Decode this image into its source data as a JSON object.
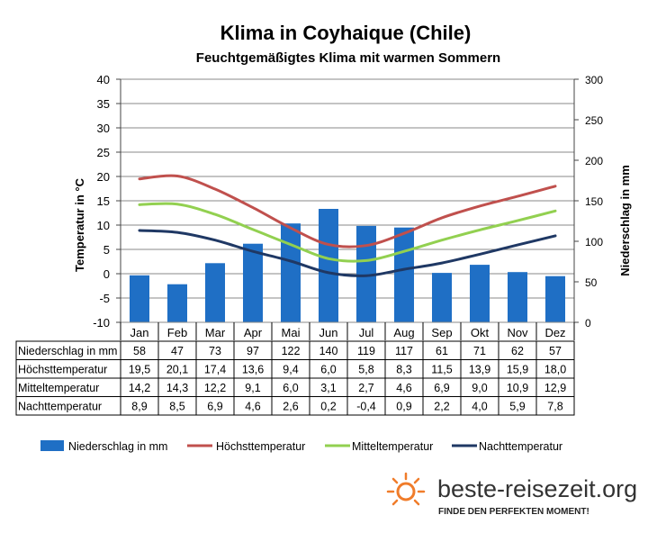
{
  "chart_data": {
    "type": "bar+line",
    "title": "Klima in Coyhaique (Chile)",
    "subtitle": "Feuchtgemäßigtes  Klima mit warmen Sommern",
    "ylabel_left": "Temperatur in °C",
    "ylabel_right": "Niederschlag in mm",
    "ylim_left": [
      -10,
      40
    ],
    "ylim_right": [
      0,
      300
    ],
    "yticks_left": [
      "40",
      "35",
      "30",
      "25",
      "20",
      "15",
      "10",
      "5",
      "0",
      "-5",
      "-10"
    ],
    "yticks_right": [
      "300",
      "250",
      "200",
      "150",
      "100",
      "50",
      "0"
    ],
    "categories": [
      "Jan",
      "Feb",
      "Mar",
      "Apr",
      "Mai",
      "Jun",
      "Jul",
      "Aug",
      "Sep",
      "Okt",
      "Nov",
      "Dez"
    ],
    "grid": true,
    "series": [
      {
        "name": "Niederschlag in mm",
        "type": "bar",
        "axis": "right",
        "color": "#1f6fc5",
        "values": [
          58,
          47,
          73,
          97,
          122,
          140,
          119,
          117,
          61,
          71,
          62,
          57
        ],
        "labels": [
          "58",
          "47",
          "73",
          "97",
          "122",
          "140",
          "119",
          "117",
          "61",
          "71",
          "62",
          "57"
        ]
      },
      {
        "name": "Höchsttemperatur",
        "type": "line",
        "axis": "left",
        "color": "#c0504d",
        "values": [
          19.5,
          20.1,
          17.4,
          13.6,
          9.4,
          6.0,
          5.8,
          8.3,
          11.5,
          13.9,
          15.9,
          18.0
        ],
        "labels": [
          "19,5",
          "20,1",
          "17,4",
          "13,6",
          "9,4",
          "6,0",
          "5,8",
          "8,3",
          "11,5",
          "13,9",
          "15,9",
          "18,0"
        ]
      },
      {
        "name": "Mitteltemperatur",
        "type": "line",
        "axis": "left",
        "color": "#92d050",
        "values": [
          14.2,
          14.3,
          12.2,
          9.1,
          6.0,
          3.1,
          2.7,
          4.6,
          6.9,
          9.0,
          10.9,
          12.9
        ],
        "labels": [
          "14,2",
          "14,3",
          "12,2",
          "9,1",
          "6,0",
          "3,1",
          "2,7",
          "4,6",
          "6,9",
          "9,0",
          "10,9",
          "12,9"
        ]
      },
      {
        "name": "Nachttemperatur",
        "type": "line",
        "axis": "left",
        "color": "#1f3864",
        "values": [
          8.9,
          8.5,
          6.9,
          4.6,
          2.6,
          0.2,
          -0.4,
          0.9,
          2.2,
          4.0,
          5.9,
          7.8
        ],
        "labels": [
          "8,9",
          "8,5",
          "6,9",
          "4,6",
          "2,6",
          "0,2",
          "-0,4",
          "0,9",
          "2,2",
          "4,0",
          "5,9",
          "7,8"
        ]
      }
    ]
  },
  "branding": {
    "site": "beste-reisezeit.org",
    "tagline": "FINDE DEN PERFEKTEN MOMENT!",
    "accent": "#f07c2a"
  }
}
